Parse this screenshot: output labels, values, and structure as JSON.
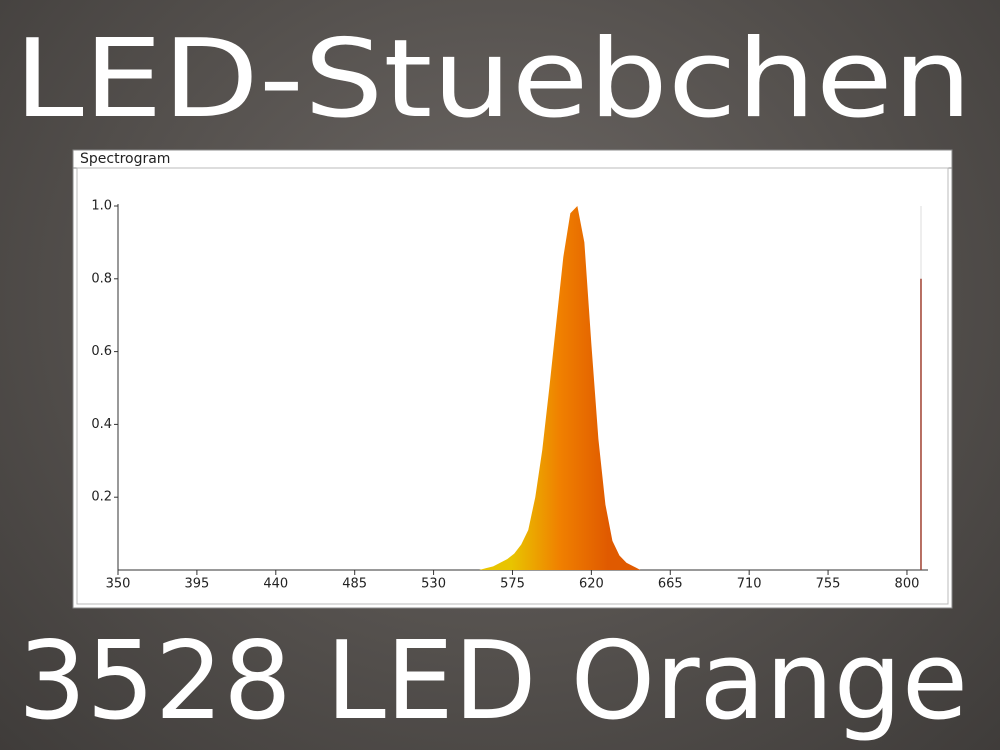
{
  "banner": {
    "top": "LED-Stuebchen",
    "bottom": "3528 LED Orange"
  },
  "chart_data": {
    "type": "area",
    "title": "Spectrogram",
    "x": [
      556,
      560,
      564,
      568,
      572,
      576,
      580,
      584,
      588,
      592,
      596,
      600,
      604,
      608,
      612,
      616,
      620,
      624,
      628,
      632,
      636,
      640,
      644,
      648
    ],
    "values": [
      0,
      0.005,
      0.01,
      0.02,
      0.03,
      0.045,
      0.07,
      0.11,
      0.2,
      0.33,
      0.5,
      0.68,
      0.86,
      0.98,
      1.0,
      0.9,
      0.62,
      0.36,
      0.18,
      0.08,
      0.04,
      0.02,
      0.01,
      0
    ],
    "colors": [
      "#e8c400",
      "#f08000",
      "#e05a00"
    ],
    "marker": {
      "x": 808,
      "value": 0.8,
      "color": "#a04030"
    },
    "xlim": [
      350,
      812
    ],
    "ylim": [
      0,
      1
    ],
    "xticks": [
      350,
      395,
      440,
      485,
      530,
      575,
      620,
      665,
      710,
      755,
      800
    ],
    "yticks": [
      0.2,
      0.4,
      0.6,
      0.8,
      {
        "value": 1,
        "label": "1.0"
      }
    ]
  }
}
